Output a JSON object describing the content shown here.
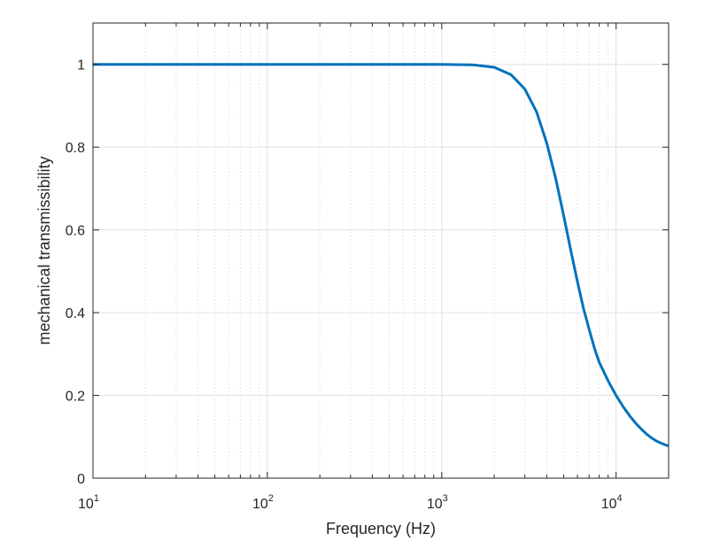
{
  "chart_data": {
    "type": "line",
    "title": "",
    "xlabel": "Frequency (Hz)",
    "ylabel": "mechanical transmissibility",
    "xscale": "log",
    "xlim": [
      10,
      20000
    ],
    "ylim": [
      0,
      1.1
    ],
    "x_ticks": [
      {
        "base": "10",
        "exp": "1",
        "value": 10
      },
      {
        "base": "10",
        "exp": "2",
        "value": 100
      },
      {
        "base": "10",
        "exp": "3",
        "value": 1000
      },
      {
        "base": "10",
        "exp": "4",
        "value": 10000
      }
    ],
    "y_ticks": [
      {
        "label": "0",
        "value": 0
      },
      {
        "label": "0.2",
        "value": 0.2
      },
      {
        "label": "0.4",
        "value": 0.4
      },
      {
        "label": "0.6",
        "value": 0.6
      },
      {
        "label": "0.8",
        "value": 0.8
      },
      {
        "label": "1",
        "value": 1
      }
    ],
    "grid": true,
    "minor_grid": true,
    "series": [
      {
        "color": "#0072BD",
        "x": [
          10,
          100,
          500,
          1000,
          1500,
          2000,
          2500,
          3000,
          3500,
          4000,
          4500,
          5000,
          5500,
          6000,
          6500,
          7000,
          7500,
          8000,
          9000,
          10000,
          11000,
          12000,
          13000,
          14000,
          15000,
          16000,
          17000,
          18000,
          19000,
          20000
        ],
        "y": [
          1.0,
          1.0,
          1.0,
          1.0,
          0.999,
          0.993,
          0.975,
          0.94,
          0.885,
          0.81,
          0.725,
          0.635,
          0.55,
          0.475,
          0.41,
          0.36,
          0.315,
          0.28,
          0.235,
          0.2,
          0.172,
          0.15,
          0.132,
          0.118,
          0.106,
          0.097,
          0.09,
          0.085,
          0.081,
          0.078
        ]
      }
    ]
  }
}
